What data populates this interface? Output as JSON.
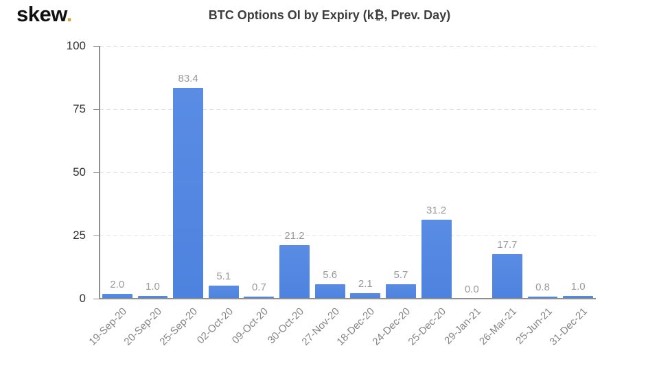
{
  "logo": {
    "text": "skew",
    "dot": "."
  },
  "chart_data": {
    "type": "bar",
    "title": "BTC Options OI by Expiry (k₿, Prev. Day)",
    "categories": [
      "19-Sep-20",
      "20-Sep-20",
      "25-Sep-20",
      "02-Oct-20",
      "09-Oct-20",
      "30-Oct-20",
      "27-Nov-20",
      "18-Dec-20",
      "24-Dec-20",
      "25-Dec-20",
      "29-Jan-21",
      "26-Mar-21",
      "25-Jun-21",
      "31-Dec-21"
    ],
    "values": [
      2.0,
      1.0,
      83.4,
      5.1,
      0.7,
      21.2,
      5.6,
      2.1,
      5.7,
      31.2,
      0.0,
      17.7,
      0.8,
      1.0
    ],
    "value_labels": [
      "2.0",
      "1.0",
      "83.4",
      "5.1",
      "0.7",
      "21.2",
      "5.6",
      "2.1",
      "5.7",
      "31.2",
      "0.0",
      "17.7",
      "0.8",
      "1.0"
    ],
    "xlabel": "",
    "ylabel": "",
    "ylim": [
      0,
      100
    ],
    "yticks": [
      0,
      25,
      50,
      75,
      100
    ],
    "grid": "horizontal-dashed",
    "legend": "none",
    "colors": {
      "bar": "#4d82de",
      "bar_gradient_top": "#5a8ce4",
      "axis": "#8f8f8f",
      "grid": "#e2e2e2",
      "y_tick_label": "#2f2f2f",
      "x_tick_label": "#858585",
      "value_label": "#999999",
      "title": "#3d3d3d",
      "logo_text": "#111111",
      "logo_dot": "#d2a43c"
    }
  }
}
